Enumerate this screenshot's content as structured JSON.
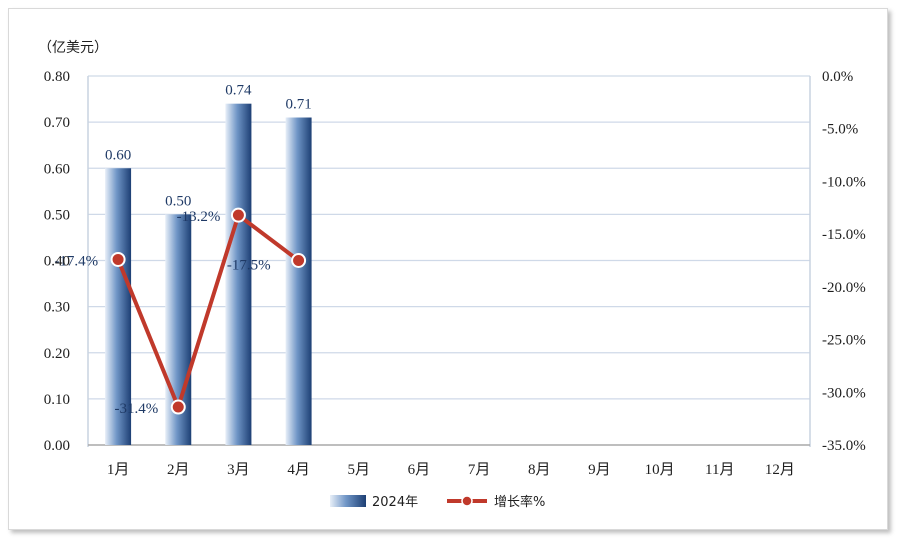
{
  "chart_data": {
    "type": "bar",
    "unit_label": "（亿美元）",
    "categories": [
      "1月",
      "2月",
      "3月",
      "4月",
      "5月",
      "6月",
      "7月",
      "8月",
      "9月",
      "10月",
      "11月",
      "12月"
    ],
    "series": [
      {
        "name": "2024年",
        "type": "bar",
        "axis": "left",
        "values": [
          0.6,
          0.5,
          0.74,
          0.71,
          null,
          null,
          null,
          null,
          null,
          null,
          null,
          null
        ],
        "labels": [
          "0.60",
          "0.50",
          "0.74",
          "0.71"
        ],
        "color": "#2e5a96"
      },
      {
        "name": "增长率%",
        "type": "line",
        "axis": "right",
        "values": [
          -17.4,
          -31.4,
          -13.2,
          -17.5,
          null,
          null,
          null,
          null,
          null,
          null,
          null,
          null
        ],
        "labels": [
          "-17.4%",
          "-31.4%",
          "-13.2%",
          "-17.5%"
        ],
        "color": "#c0392b"
      }
    ],
    "y_left": {
      "min": 0,
      "max": 0.8,
      "step": 0.1,
      "ticks": [
        "0.00",
        "0.10",
        "0.20",
        "0.30",
        "0.40",
        "0.50",
        "0.60",
        "0.70",
        "0.80"
      ]
    },
    "y_right": {
      "min": -35,
      "max": 0,
      "step": 5,
      "ticks": [
        "0.0%",
        "-5.0%",
        "-10.0%",
        "-15.0%",
        "-20.0%",
        "-25.0%",
        "-30.0%",
        "-35.0%"
      ]
    },
    "grid": true,
    "legend": "bottom"
  }
}
